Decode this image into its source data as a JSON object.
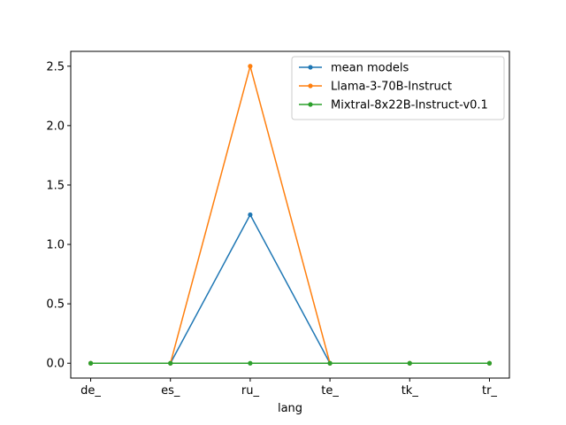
{
  "chart_data": {
    "type": "line",
    "title": "",
    "xlabel": "lang",
    "ylabel": "",
    "categories": [
      "de_",
      "es_",
      "ru_",
      "te_",
      "tk_",
      "tr_"
    ],
    "ylim": [
      -0.125,
      2.625
    ],
    "yticks": [
      0.0,
      0.5,
      1.0,
      1.5,
      2.0,
      2.5
    ],
    "ytick_labels": [
      "0.0",
      "0.5",
      "1.0",
      "1.5",
      "2.0",
      "2.5"
    ],
    "grid": false,
    "legend_position": "top-right",
    "series": [
      {
        "name": "mean models",
        "color": "#1f77b4",
        "values": [
          0.0,
          0.0,
          1.25,
          0.0,
          0.0,
          0.0
        ]
      },
      {
        "name": "Llama-3-70B-Instruct",
        "color": "#ff7f0e",
        "values": [
          0.0,
          0.0,
          2.5,
          0.0,
          0.0,
          0.0
        ]
      },
      {
        "name": "Mixtral-8x22B-Instruct-v0.1",
        "color": "#2ca02c",
        "values": [
          0.0,
          0.0,
          0.0,
          0.0,
          0.0,
          0.0
        ]
      }
    ]
  }
}
